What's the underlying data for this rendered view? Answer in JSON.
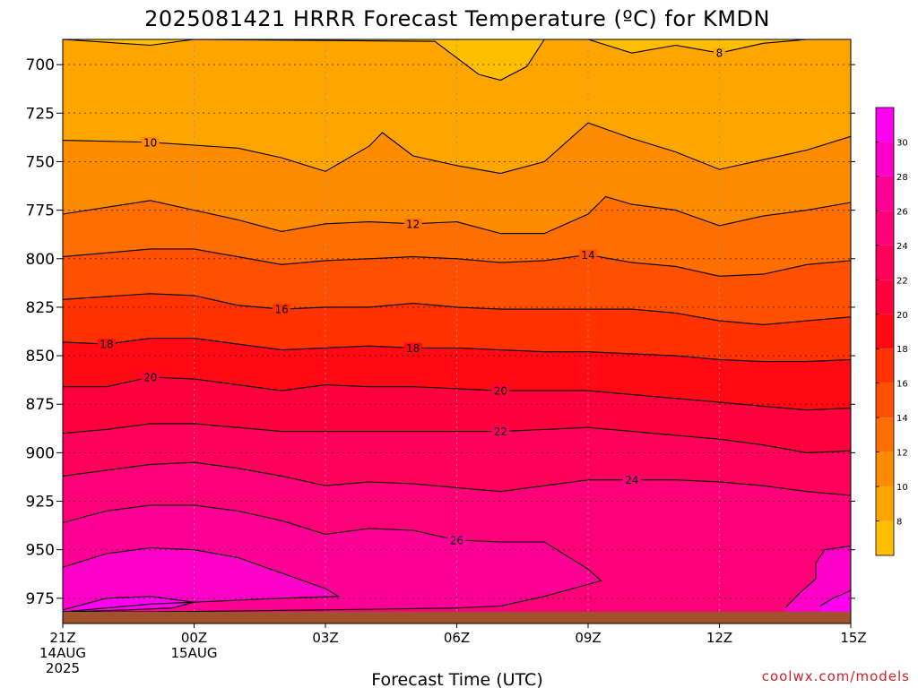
{
  "chart_data": {
    "type": "heatmap",
    "title": "2025081421 HRRR Forecast Temperature (ºC) for KMDN",
    "xlabel": "Forecast Time (UTC)",
    "ylabel": "",
    "credit": "coolwx.com/models",
    "x_ticks": [
      {
        "hour": 0,
        "lines": [
          "21Z",
          "14AUG",
          "2025"
        ]
      },
      {
        "hour": 3,
        "lines": [
          "00Z",
          "15AUG"
        ]
      },
      {
        "hour": 6,
        "lines": [
          "03Z"
        ]
      },
      {
        "hour": 9,
        "lines": [
          "06Z"
        ]
      },
      {
        "hour": 12,
        "lines": [
          "09Z"
        ]
      },
      {
        "hour": 15,
        "lines": [
          "12Z"
        ]
      },
      {
        "hour": 18,
        "lines": [
          "15Z"
        ]
      }
    ],
    "xlim": [
      0,
      18
    ],
    "y_ticks": [
      700,
      725,
      750,
      775,
      800,
      825,
      850,
      875,
      900,
      925,
      950,
      975
    ],
    "ylim_hPa": [
      687,
      988
    ],
    "ground_level_hPa": 982,
    "colorbar": {
      "ticks": [
        8,
        10,
        12,
        14,
        16,
        18,
        20,
        22,
        24,
        26,
        28,
        30
      ],
      "bands": [
        {
          "min": 6,
          "max": 8,
          "color": "#ffbe00"
        },
        {
          "min": 8,
          "max": 10,
          "color": "#ffa500"
        },
        {
          "min": 10,
          "max": 12,
          "color": "#ff8c00"
        },
        {
          "min": 12,
          "max": 14,
          "color": "#ff6e00"
        },
        {
          "min": 14,
          "max": 16,
          "color": "#ff5000"
        },
        {
          "min": 16,
          "max": 18,
          "color": "#ff3200"
        },
        {
          "min": 18,
          "max": 20,
          "color": "#ff0a14"
        },
        {
          "min": 20,
          "max": 22,
          "color": "#ff003c"
        },
        {
          "min": 22,
          "max": 24,
          "color": "#ff005a"
        },
        {
          "min": 24,
          "max": 26,
          "color": "#ff0078"
        },
        {
          "min": 26,
          "max": 28,
          "color": "#ff0096"
        },
        {
          "min": 28,
          "max": 30,
          "color": "#ff00c8"
        },
        {
          "min": 30,
          "max": 32,
          "color": "#ff00f0"
        }
      ]
    },
    "ground_color": "#a0522d",
    "contours": [
      {
        "value": 8,
        "points": [
          [
            0,
            687
          ],
          [
            2,
            690
          ],
          [
            3,
            687
          ],
          [
            8.5,
            688
          ],
          [
            9.5,
            705
          ],
          [
            10,
            708
          ],
          [
            10.6,
            701
          ],
          [
            11,
            687
          ],
          [
            12,
            687
          ],
          [
            13,
            694
          ],
          [
            14,
            690
          ],
          [
            15,
            694
          ],
          [
            16,
            689
          ],
          [
            18,
            685
          ]
        ],
        "label_at": 15
      },
      {
        "value": 10,
        "points": [
          [
            0,
            739
          ],
          [
            2,
            740
          ],
          [
            4,
            743
          ],
          [
            5,
            748
          ],
          [
            6,
            755
          ],
          [
            7,
            742
          ],
          [
            7.3,
            735
          ],
          [
            8,
            747
          ],
          [
            9,
            752
          ],
          [
            10,
            756
          ],
          [
            11,
            750
          ],
          [
            12,
            730
          ],
          [
            13,
            738
          ],
          [
            14,
            745
          ],
          [
            15,
            754
          ],
          [
            16,
            749
          ],
          [
            17,
            744
          ],
          [
            18,
            737
          ]
        ],
        "label_at": 2
      },
      {
        "value": 12,
        "points": [
          [
            0,
            777
          ],
          [
            2,
            770
          ],
          [
            3,
            775
          ],
          [
            4,
            780
          ],
          [
            5,
            786
          ],
          [
            6,
            782
          ],
          [
            7,
            781
          ],
          [
            8,
            782
          ],
          [
            9,
            781
          ],
          [
            10,
            787
          ],
          [
            11,
            787
          ],
          [
            12,
            777
          ],
          [
            12.4,
            768
          ],
          [
            13,
            772
          ],
          [
            14,
            775
          ],
          [
            15,
            783
          ],
          [
            16,
            778
          ],
          [
            17,
            775
          ],
          [
            18,
            771
          ]
        ],
        "label_at": 8
      },
      {
        "value": 14,
        "points": [
          [
            0,
            799
          ],
          [
            2,
            795
          ],
          [
            3,
            795
          ],
          [
            4,
            799
          ],
          [
            5,
            803
          ],
          [
            6,
            801
          ],
          [
            7,
            800
          ],
          [
            8,
            799
          ],
          [
            9,
            800
          ],
          [
            10,
            802
          ],
          [
            11,
            801
          ],
          [
            12,
            798
          ],
          [
            13,
            802
          ],
          [
            14,
            804
          ],
          [
            15,
            809
          ],
          [
            16,
            808
          ],
          [
            17,
            803
          ],
          [
            18,
            801
          ]
        ],
        "label_at": 12
      },
      {
        "value": 16,
        "points": [
          [
            0,
            821
          ],
          [
            2,
            818
          ],
          [
            3,
            819
          ],
          [
            4,
            824
          ],
          [
            5,
            826
          ],
          [
            6,
            825
          ],
          [
            7,
            825
          ],
          [
            8,
            823
          ],
          [
            9,
            825
          ],
          [
            10,
            826
          ],
          [
            11,
            826
          ],
          [
            12,
            826
          ],
          [
            13,
            826
          ],
          [
            14,
            828
          ],
          [
            15,
            832
          ],
          [
            16,
            834
          ],
          [
            17,
            832
          ],
          [
            18,
            830
          ]
        ],
        "label_at": 5
      },
      {
        "value": 18,
        "points": [
          [
            0,
            843
          ],
          [
            1,
            844
          ],
          [
            2,
            841
          ],
          [
            3,
            841
          ],
          [
            4,
            844
          ],
          [
            5,
            847
          ],
          [
            6,
            846
          ],
          [
            7,
            845
          ],
          [
            8,
            846
          ],
          [
            9,
            846
          ],
          [
            10,
            847
          ],
          [
            11,
            848
          ],
          [
            12,
            848
          ],
          [
            13,
            849
          ],
          [
            14,
            850
          ],
          [
            15,
            852
          ],
          [
            16,
            853
          ],
          [
            17,
            853
          ],
          [
            18,
            852
          ]
        ],
        "label_at": 1,
        "label_at2": 8
      },
      {
        "value": 20,
        "points": [
          [
            0,
            866
          ],
          [
            1,
            866
          ],
          [
            2,
            861
          ],
          [
            3,
            862
          ],
          [
            4,
            865
          ],
          [
            5,
            868
          ],
          [
            6,
            865
          ],
          [
            7,
            866
          ],
          [
            8,
            866
          ],
          [
            9,
            867
          ],
          [
            10,
            868
          ],
          [
            11,
            868
          ],
          [
            12,
            868
          ],
          [
            13,
            870
          ],
          [
            14,
            872
          ],
          [
            15,
            874
          ],
          [
            16,
            876
          ],
          [
            17,
            878
          ],
          [
            18,
            877
          ]
        ],
        "label_at": 2,
        "label_at2": 10
      },
      {
        "value": 22,
        "points": [
          [
            0,
            890
          ],
          [
            1,
            888
          ],
          [
            2,
            885
          ],
          [
            3,
            885
          ],
          [
            4,
            887
          ],
          [
            5,
            889
          ],
          [
            6,
            889
          ],
          [
            7,
            889
          ],
          [
            8,
            889
          ],
          [
            9,
            889
          ],
          [
            10,
            889
          ],
          [
            11,
            888
          ],
          [
            12,
            887
          ],
          [
            13,
            889
          ],
          [
            14,
            891
          ],
          [
            15,
            893
          ],
          [
            16,
            896
          ],
          [
            17,
            900
          ],
          [
            18,
            899
          ]
        ],
        "label_at": 10
      },
      {
        "value": 24,
        "points": [
          [
            0,
            912
          ],
          [
            1,
            909
          ],
          [
            2,
            906
          ],
          [
            3,
            905
          ],
          [
            4,
            908
          ],
          [
            5,
            912
          ],
          [
            6,
            917
          ],
          [
            7,
            915
          ],
          [
            8,
            916
          ],
          [
            9,
            918
          ],
          [
            10,
            920
          ],
          [
            11,
            917
          ],
          [
            12,
            914
          ],
          [
            13,
            914
          ],
          [
            14,
            914
          ],
          [
            15,
            915
          ],
          [
            16,
            917
          ],
          [
            17,
            920
          ],
          [
            18,
            922
          ]
        ],
        "label_at": 13
      },
      {
        "value": 26,
        "points": [
          [
            0,
            936
          ],
          [
            1,
            930
          ],
          [
            2,
            927
          ],
          [
            3,
            927
          ],
          [
            4,
            930
          ],
          [
            5,
            935
          ],
          [
            6,
            942
          ],
          [
            7,
            939
          ],
          [
            8,
            940
          ],
          [
            9,
            945
          ],
          [
            10,
            946
          ],
          [
            11,
            946
          ],
          [
            12,
            960
          ],
          [
            12.3,
            966
          ],
          [
            11,
            974
          ],
          [
            10,
            979
          ],
          [
            9,
            980
          ],
          [
            7.5,
            980.5
          ],
          [
            6,
            981
          ],
          [
            4,
            981.5
          ],
          [
            2,
            982
          ],
          [
            0,
            982
          ]
        ],
        "label_at": 9
      },
      {
        "value": 28,
        "points": [
          [
            0,
            959
          ],
          [
            1,
            952
          ],
          [
            2,
            949
          ],
          [
            3,
            950
          ],
          [
            4,
            954
          ],
          [
            5,
            962
          ],
          [
            6,
            970
          ],
          [
            6.3,
            974
          ],
          [
            5,
            975
          ],
          [
            3,
            977
          ],
          [
            2,
            978
          ],
          [
            0,
            982
          ]
        ],
        "label_at": null
      },
      {
        "value": 28,
        "points": [
          [
            18,
            948
          ],
          [
            17.4,
            950
          ],
          [
            17.2,
            957
          ],
          [
            17.2,
            965
          ],
          [
            16.8,
            973
          ],
          [
            16.5,
            980
          ]
        ],
        "label_at": null
      },
      {
        "value": 30,
        "points": [
          [
            0,
            981
          ],
          [
            1,
            975
          ],
          [
            2,
            974
          ],
          [
            3,
            977
          ],
          [
            2.5,
            980
          ],
          [
            1.5,
            981
          ],
          [
            0,
            982
          ]
        ],
        "label_at": null
      },
      {
        "value": 30,
        "points": [
          [
            18,
            971
          ],
          [
            17.6,
            975
          ],
          [
            17.3,
            979
          ]
        ],
        "label_at": null
      }
    ]
  }
}
